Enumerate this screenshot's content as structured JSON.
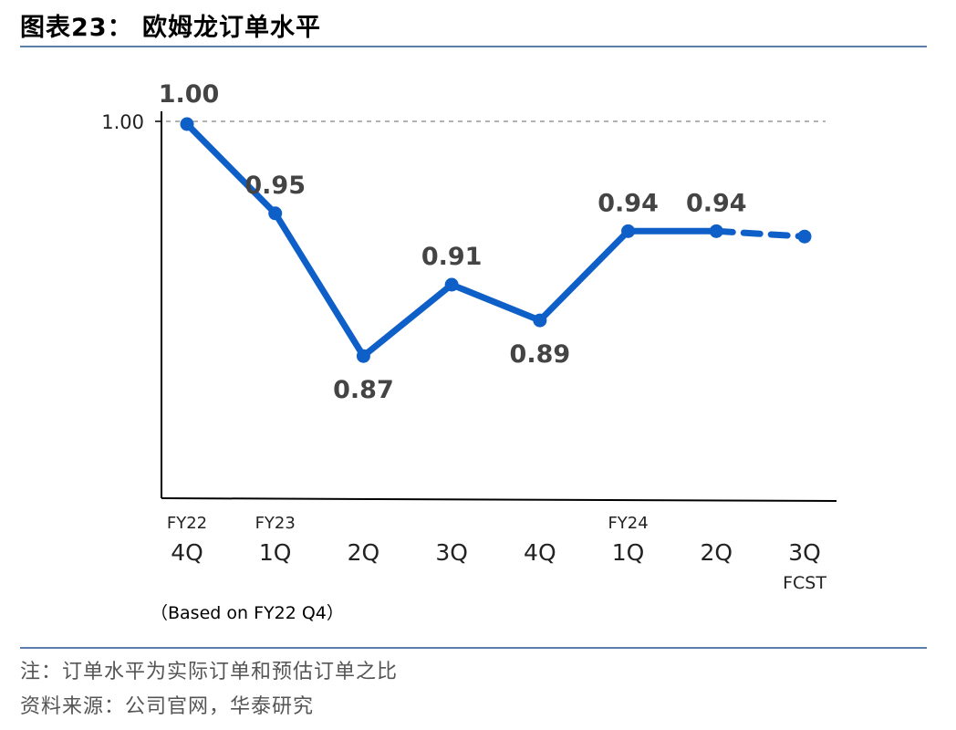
{
  "title": "图表23： 欧姆龙订单水平",
  "chart_data": {
    "type": "line",
    "categories": [
      {
        "top": "FY22",
        "main": "4Q",
        "sub": ""
      },
      {
        "top": "FY23",
        "main": "1Q",
        "sub": ""
      },
      {
        "top": "",
        "main": "2Q",
        "sub": ""
      },
      {
        "top": "",
        "main": "3Q",
        "sub": ""
      },
      {
        "top": "",
        "main": "4Q",
        "sub": ""
      },
      {
        "top": "FY24",
        "main": "1Q",
        "sub": ""
      },
      {
        "top": "",
        "main": "2Q",
        "sub": ""
      },
      {
        "top": "",
        "main": "3Q",
        "sub": "FCST"
      }
    ],
    "series": [
      {
        "values": [
          1.0,
          0.95,
          0.87,
          0.91,
          0.89,
          0.94,
          0.94,
          0.937
        ],
        "labels": [
          "1.00",
          "0.95",
          "0.87",
          "0.91",
          "0.89",
          "0.94",
          "0.94",
          ""
        ],
        "forecast_from_index": 6,
        "color": "#0f5fc8"
      }
    ],
    "y_ticks": [
      {
        "value": 1.0,
        "label": "1.00"
      }
    ],
    "reference_line": {
      "value": 1.0,
      "style": "dashed",
      "color": "#999999"
    },
    "ylim": [
      0.82,
      1.0
    ],
    "note_below_axis": "（Based on FY22 Q4）"
  },
  "footer": {
    "note": "注：订单水平为实际订单和预估订单之比",
    "source": "资料来源：公司官网，华泰研究"
  }
}
